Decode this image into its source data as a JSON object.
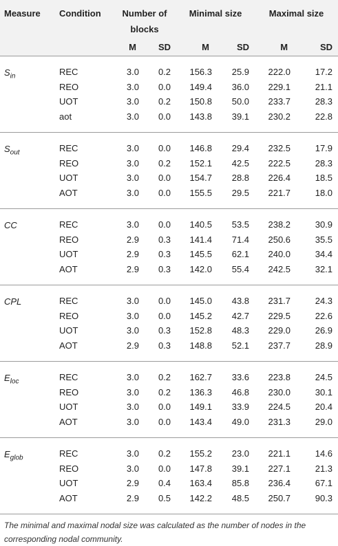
{
  "headers": {
    "measure": "Measure",
    "condition": "Condition",
    "blocks": "Number of blocks",
    "minimal": "Minimal size",
    "maximal": "Maximal size",
    "m": "M",
    "sd": "SD"
  },
  "groups": [
    {
      "measure_base": "S",
      "measure_sub": "in",
      "rows": [
        {
          "cond": "REC",
          "v": [
            "3.0",
            "0.2",
            "156.3",
            "25.9",
            "222.0",
            "17.2"
          ]
        },
        {
          "cond": "REO",
          "v": [
            "3.0",
            "0.0",
            "149.4",
            "36.0",
            "229.1",
            "21.1"
          ]
        },
        {
          "cond": "UOT",
          "v": [
            "3.0",
            "0.2",
            "150.8",
            "50.0",
            "233.7",
            "28.3"
          ]
        },
        {
          "cond": "aot",
          "v": [
            "3.0",
            "0.0",
            "143.8",
            "39.1",
            "230.2",
            "22.8"
          ]
        }
      ]
    },
    {
      "measure_base": "S",
      "measure_sub": "out",
      "rows": [
        {
          "cond": "REC",
          "v": [
            "3.0",
            "0.0",
            "146.8",
            "29.4",
            "232.5",
            "17.9"
          ]
        },
        {
          "cond": "REO",
          "v": [
            "3.0",
            "0.2",
            "152.1",
            "42.5",
            "222.5",
            "28.3"
          ]
        },
        {
          "cond": "UOT",
          "v": [
            "3.0",
            "0.0",
            "154.7",
            "28.8",
            "226.4",
            "18.5"
          ]
        },
        {
          "cond": "AOT",
          "v": [
            "3.0",
            "0.0",
            "155.5",
            "29.5",
            "221.7",
            "18.0"
          ]
        }
      ]
    },
    {
      "measure_base": "CC",
      "measure_sub": "",
      "rows": [
        {
          "cond": "REC",
          "v": [
            "3.0",
            "0.0",
            "140.5",
            "53.5",
            "238.2",
            "30.9"
          ]
        },
        {
          "cond": "REO",
          "v": [
            "2.9",
            "0.3",
            "141.4",
            "71.4",
            "250.6",
            "35.5"
          ]
        },
        {
          "cond": "UOT",
          "v": [
            "2.9",
            "0.3",
            "145.5",
            "62.1",
            "240.0",
            "34.4"
          ]
        },
        {
          "cond": "AOT",
          "v": [
            "2.9",
            "0.3",
            "142.0",
            "55.4",
            "242.5",
            "32.1"
          ]
        }
      ]
    },
    {
      "measure_base": "CPL",
      "measure_sub": "",
      "rows": [
        {
          "cond": "REC",
          "v": [
            "3.0",
            "0.0",
            "145.0",
            "43.8",
            "231.7",
            "24.3"
          ]
        },
        {
          "cond": "REO",
          "v": [
            "3.0",
            "0.0",
            "145.2",
            "42.7",
            "229.5",
            "22.6"
          ]
        },
        {
          "cond": "UOT",
          "v": [
            "3.0",
            "0.3",
            "152.8",
            "48.3",
            "229.0",
            "26.9"
          ]
        },
        {
          "cond": "AOT",
          "v": [
            "2.9",
            "0.3",
            "148.8",
            "52.1",
            "237.7",
            "28.9"
          ]
        }
      ]
    },
    {
      "measure_base": "E",
      "measure_sub": "loc",
      "rows": [
        {
          "cond": "REC",
          "v": [
            "3.0",
            "0.2",
            "162.7",
            "33.6",
            "223.8",
            "24.5"
          ]
        },
        {
          "cond": "REO",
          "v": [
            "3.0",
            "0.2",
            "136.3",
            "46.8",
            "230.0",
            "30.1"
          ]
        },
        {
          "cond": "UOT",
          "v": [
            "3.0",
            "0.0",
            "149.1",
            "33.9",
            "224.5",
            "20.4"
          ]
        },
        {
          "cond": "AOT",
          "v": [
            "3.0",
            "0.0",
            "143.4",
            "49.0",
            "231.3",
            "29.0"
          ]
        }
      ]
    },
    {
      "measure_base": "E",
      "measure_sub": "glob",
      "rows": [
        {
          "cond": "REC",
          "v": [
            "3.0",
            "0.2",
            "155.2",
            "23.0",
            "221.1",
            "14.6"
          ]
        },
        {
          "cond": "REO",
          "v": [
            "3.0",
            "0.0",
            "147.8",
            "39.1",
            "227.1",
            "21.3"
          ]
        },
        {
          "cond": "UOT",
          "v": [
            "2.9",
            "0.4",
            "163.4",
            "85.8",
            "236.4",
            "67.1"
          ]
        },
        {
          "cond": "AOT",
          "v": [
            "2.9",
            "0.5",
            "142.2",
            "48.5",
            "250.7",
            "90.3"
          ]
        }
      ]
    }
  ],
  "footnote": "The minimal and maximal nodal size was calculated as the number of nodes in the corresponding nodal community."
}
